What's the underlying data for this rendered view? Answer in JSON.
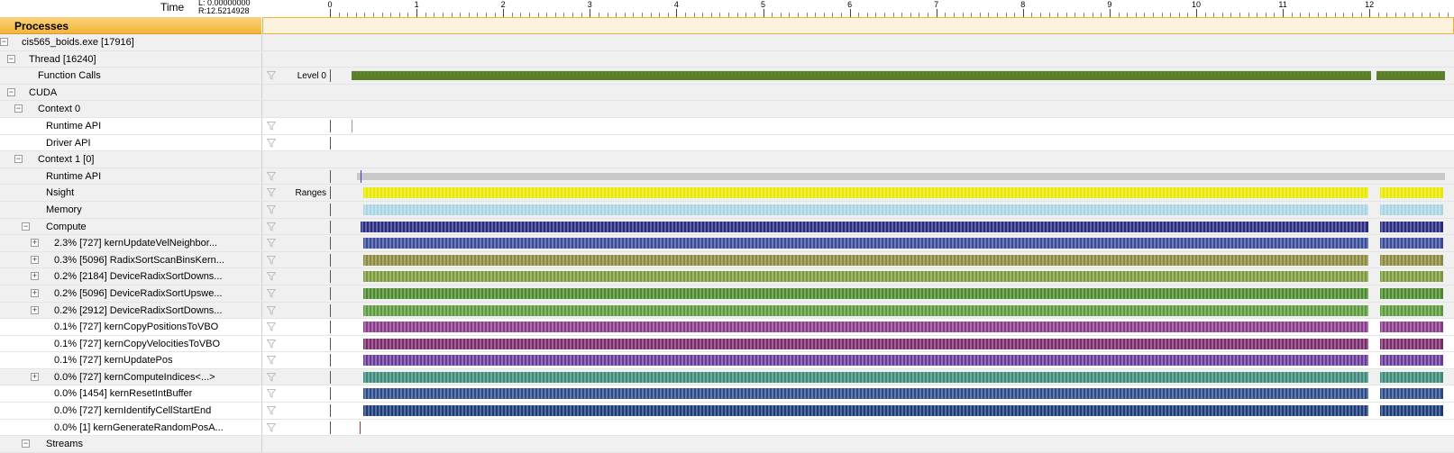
{
  "ruler": {
    "time_label": "Time",
    "range_left": "L: 0.00000000",
    "range_right": "R:12.5214928",
    "ticks": [
      "0",
      "1",
      "2",
      "3",
      "4",
      "5",
      "6",
      "7",
      "8",
      "9",
      "10",
      "11",
      "12"
    ]
  },
  "header": {
    "title": "Processes"
  },
  "rows": [
    {
      "label": "cis565_boids.exe [17916]",
      "expander": "collapse"
    },
    {
      "label": "Thread [16240]",
      "expander": "collapse"
    },
    {
      "label": "Function Calls",
      "level": "Level 0",
      "filter": true,
      "track": "green"
    },
    {
      "label": "CUDA",
      "expander": "collapse"
    },
    {
      "label": "Context 0",
      "expander": "collapse"
    },
    {
      "label": "Runtime API",
      "filter": true,
      "track": "tick-sparse"
    },
    {
      "label": "Driver API",
      "filter": true,
      "track": "none"
    },
    {
      "label": "Context 1 [0]",
      "expander": "collapse"
    },
    {
      "label": "Runtime API",
      "filter": true,
      "track": "gray"
    },
    {
      "label": "Nsight",
      "level": "Ranges",
      "filter": true,
      "track": "yellow"
    },
    {
      "label": "Memory",
      "filter": true,
      "track": "lightblue"
    },
    {
      "label": "Compute",
      "expander": "collapse",
      "filter": true,
      "track": "navy"
    },
    {
      "label": "2.3% [727] kernUpdateVelNeighbor...",
      "expander": "expand",
      "filter": true,
      "track": "navy2"
    },
    {
      "label": "0.3% [5096] RadixSortScanBinsKern...",
      "expander": "expand",
      "filter": true,
      "track": "olive"
    },
    {
      "label": "0.2% [2184] DeviceRadixSortDowns...",
      "expander": "expand",
      "filter": true,
      "track": "olivegreen"
    },
    {
      "label": "0.2% [5096] DeviceRadixSortUpswe...",
      "expander": "expand",
      "filter": true,
      "track": "green2"
    },
    {
      "label": "0.2% [2912] DeviceRadixSortDowns...",
      "expander": "expand",
      "filter": true,
      "track": "green3"
    },
    {
      "label": "0.1% [727] kernCopyPositionsToVBO",
      "filter": true,
      "track": "purple"
    },
    {
      "label": "0.1% [727] kernCopyVelocitiesToVBO",
      "filter": true,
      "track": "purple2"
    },
    {
      "label": "0.1% [727] kernUpdatePos",
      "filter": true,
      "track": "purple3"
    },
    {
      "label": "0.0% [727] kernComputeIndices<...>",
      "expander": "expand",
      "filter": true,
      "track": "teal"
    },
    {
      "label": "0.0% [1454] kernResetIntBuffer",
      "filter": true,
      "track": "darkblue"
    },
    {
      "label": "0.0% [727] kernIdentifyCellStartEnd",
      "filter": true,
      "track": "darkblue2"
    },
    {
      "label": "0.0% [1] kernGenerateRandomPosA...",
      "filter": true,
      "track": "single-red"
    },
    {
      "label": "Streams",
      "expander": "collapse"
    }
  ],
  "colors": {
    "green": "#5a7d2a",
    "gray": "#c8c8c8",
    "yellow": "#e8e800",
    "lightblue": "#a8d4e4",
    "navy": "#2a2a80",
    "navy2": "#3a4a9a",
    "olive": "#8a8a3a",
    "olivegreen": "#7a9a3a",
    "green2": "#4a8a2a",
    "green3": "#5a9a3a",
    "purple": "#8a3a8a",
    "purple2": "#7a2a6a",
    "purple3": "#6a3a9a",
    "teal": "#3a8a7a",
    "darkblue": "#2a4a8a",
    "darkblue2": "#1a3a7a",
    "red": "#b03030",
    "header_accent": "#f4b43a"
  }
}
